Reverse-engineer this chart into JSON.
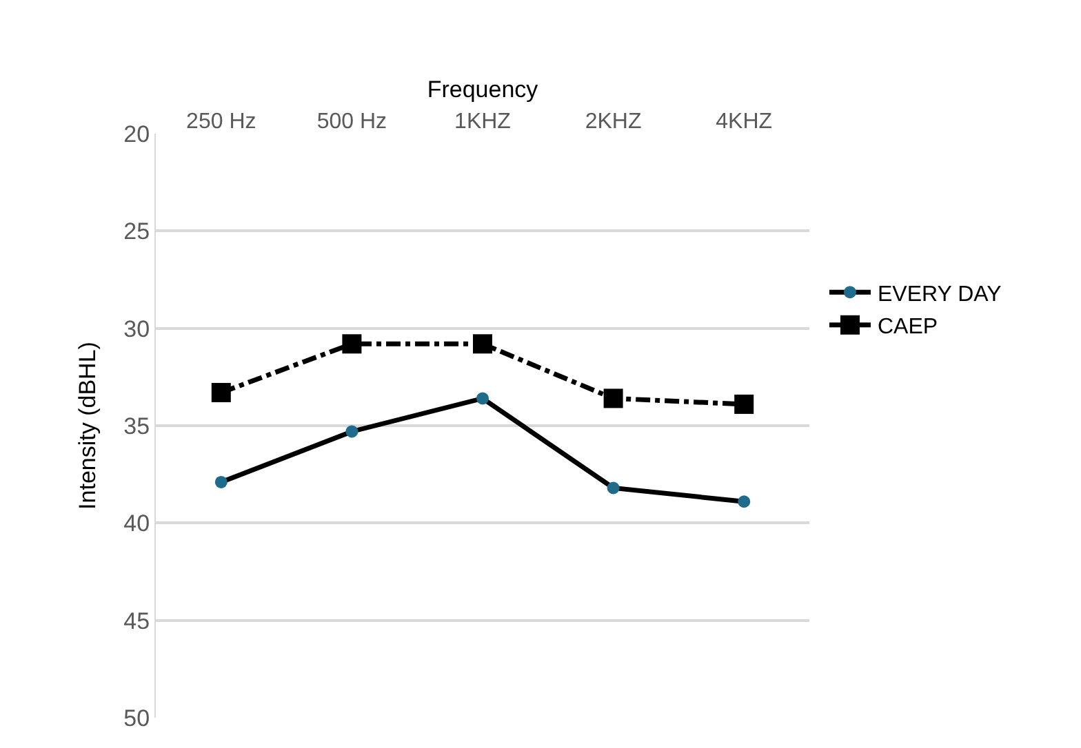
{
  "chart_data": {
    "type": "line",
    "xlabel": "Frequency",
    "ylabel": "Intensity (dBHL)",
    "categories": [
      "250 Hz",
      "500 Hz",
      "1KHZ",
      "2KHZ",
      "4KHZ"
    ],
    "series": [
      {
        "name": "EVERY DAY",
        "color": "#000000",
        "colors": [
          "#1f6b8c",
          "#1f6b8c",
          "#1f6b8c",
          "#1f6b8c",
          "#1f6b8c"
        ],
        "marker": "circle",
        "line_style": "solid",
        "values": [
          37.9,
          35.3,
          33.6,
          38.2,
          38.9
        ]
      },
      {
        "name": "CAEP",
        "color": "#000000",
        "marker": "square",
        "line_style": "dashdot",
        "values": [
          33.3,
          30.8,
          30.8,
          33.6,
          33.9
        ]
      }
    ],
    "ylim": [
      50,
      20
    ],
    "yticks": [
      20,
      25,
      30,
      35,
      40,
      45,
      50
    ],
    "grid": "y",
    "legend": "right"
  }
}
